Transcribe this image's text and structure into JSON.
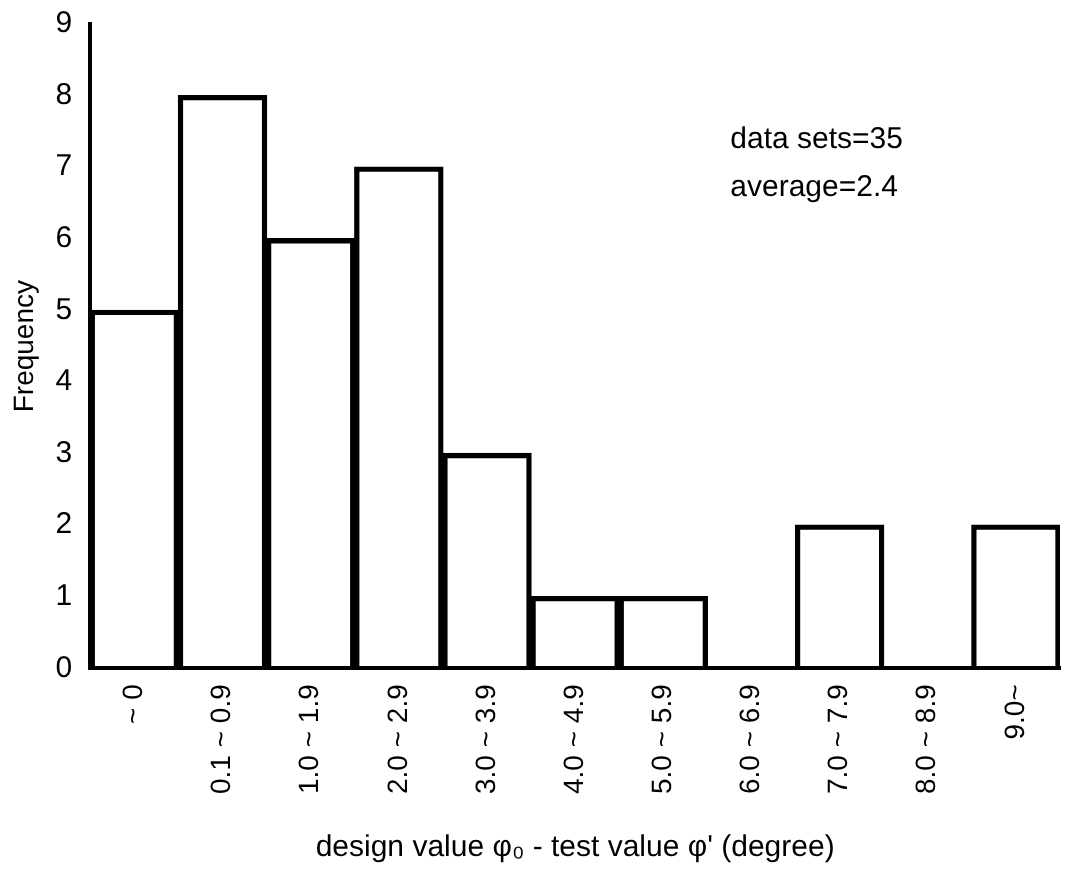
{
  "chart_data": {
    "type": "bar",
    "xlabel": "design value φ₀ - test value φ' (degree)",
    "ylabel": "Frequency",
    "categories": [
      "~ 0",
      "0.1 ~ 0.9",
      "1.0 ~ 1.9",
      "2.0 ~ 2.9",
      "3.0 ~ 3.9",
      "4.0 ~ 4.9",
      "5.0 ~ 5.9",
      "6.0 ~ 6.9",
      "7.0 ~ 7.9",
      "8.0 ~ 8.9",
      "9.0~"
    ],
    "values": [
      5,
      8,
      6,
      7,
      3,
      1,
      1,
      0,
      2,
      0,
      2
    ],
    "color": "#000000",
    "ylim": [
      0,
      9
    ],
    "yticks": [
      0,
      1,
      2,
      3,
      4,
      5,
      6,
      7,
      8,
      9
    ],
    "grid": false,
    "legend": false,
    "annotations": [
      "data sets=35",
      "average=2.4"
    ]
  }
}
